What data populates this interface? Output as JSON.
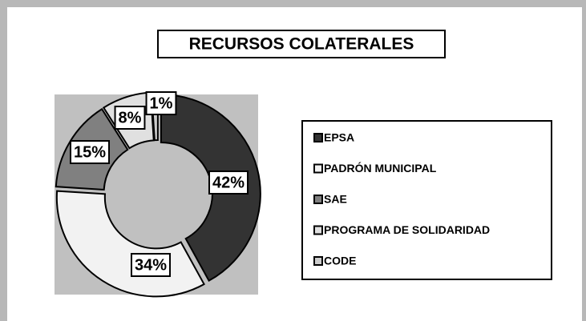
{
  "chart_data": {
    "type": "donut",
    "title": "RECURSOS COLATERALES",
    "categories": [
      "EPSA",
      "PADRÓN MUNICIPAL",
      "SAE",
      "PROGRAMA DE SOLIDARIDAD",
      "CODE"
    ],
    "values": [
      42,
      34,
      15,
      8,
      1
    ],
    "value_labels": [
      "42%",
      "34%",
      "15%",
      "8%",
      "1%"
    ],
    "colors": [
      "#333333",
      "#f2f2f2",
      "#808080",
      "#e0e0e0",
      "#cccccc"
    ],
    "legend": "right"
  }
}
